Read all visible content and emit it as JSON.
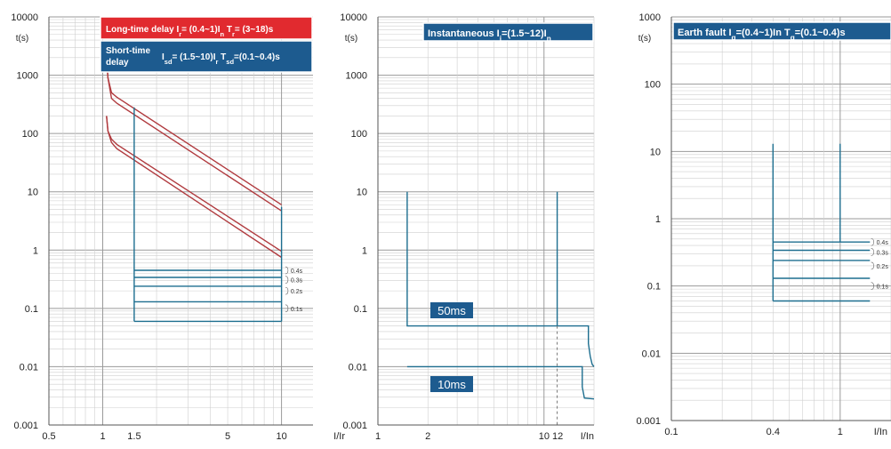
{
  "chart_data": [
    {
      "type": "line",
      "ylabel": "t(s)",
      "xlabel": "I/Ir",
      "xscale": "log",
      "yscale": "log",
      "xlim": [
        0.5,
        15
      ],
      "ylim": [
        0.001,
        10000
      ],
      "xticks": [
        "0.5",
        "1",
        "1.5",
        "5",
        "10"
      ],
      "yticks": [
        "10000",
        "1000",
        "100",
        "10",
        "1",
        "0.1",
        "0.01",
        "0.001"
      ],
      "grid": true,
      "boxes": [
        {
          "title": "Long-time delay  Ir= (0.4~1)In  Tr= (3~18)s",
          "color": "#e12a2f"
        },
        {
          "title_line1": "Short-time",
          "title_line2": "delay",
          "formula": "Isd= (1.5~10)Ir  Tsd=(0.1~0.4)s",
          "color": "#1d5b8f"
        }
      ],
      "series": [
        {
          "color": "#b03a3e",
          "x": [
            1.05,
            1.07,
            1.12,
            1.2,
            10
          ],
          "y": [
            2000,
            900,
            500,
            420,
            6.0
          ]
        },
        {
          "color": "#b03a3e",
          "x": [
            1.05,
            1.07,
            1.12,
            1.2,
            10
          ],
          "y": [
            2000,
            900,
            400,
            330,
            4.7
          ]
        },
        {
          "color": "#b03a3e",
          "x": [
            1.05,
            1.07,
            1.12,
            1.2,
            10
          ],
          "y": [
            200,
            110,
            80,
            65,
            0.95
          ]
        },
        {
          "color": "#b03a3e",
          "x": [
            1.05,
            1.07,
            1.12,
            1.2,
            10
          ],
          "y": [
            200,
            110,
            70,
            55,
            0.75
          ]
        },
        {
          "color": "#1d6e8f",
          "x": [
            1.5,
            1.5
          ],
          "y": [
            280,
            0.06
          ]
        },
        {
          "color": "#1d6e8f",
          "x": [
            10,
            10
          ],
          "y": [
            5.5,
            0.06
          ]
        },
        {
          "color": "#1d6e8f",
          "x": [
            1.5,
            10
          ],
          "y": [
            0.45,
            0.45
          ]
        },
        {
          "color": "#1d6e8f",
          "x": [
            1.5,
            10
          ],
          "y": [
            0.34,
            0.34
          ]
        },
        {
          "color": "#1d6e8f",
          "x": [
            1.5,
            10
          ],
          "y": [
            0.24,
            0.24
          ]
        },
        {
          "color": "#1d6e8f",
          "x": [
            1.5,
            10
          ],
          "y": [
            0.13,
            0.13
          ]
        },
        {
          "color": "#1d6e8f",
          "x": [
            1.5,
            10
          ],
          "y": [
            0.06,
            0.06
          ]
        }
      ],
      "annotations": [
        {
          "text": "0.4s",
          "x": 11,
          "y": 0.45
        },
        {
          "text": "0.3s",
          "x": 11,
          "y": 0.31
        },
        {
          "text": "0.2s",
          "x": 11,
          "y": 0.2
        },
        {
          "text": "0.1s",
          "x": 11,
          "y": 0.1
        }
      ]
    },
    {
      "type": "line",
      "ylabel": "t(s)",
      "xlabel": "I/In",
      "xscale": "log",
      "yscale": "log",
      "xlim": [
        1,
        20
      ],
      "ylim": [
        0.001,
        10000
      ],
      "xticks": [
        "1",
        "2",
        "10 12"
      ],
      "yticks": [
        "10000",
        "1000",
        "100",
        "10",
        "1",
        "0.1",
        "0.01",
        "0.001"
      ],
      "grid": true,
      "boxes": [
        {
          "title": "Instantaneous Ii=(1.5~12)In",
          "color": "#1d5b8f"
        },
        {
          "title": "50ms",
          "color": "#1d5b8f"
        },
        {
          "title": "10ms",
          "color": "#1d5b8f"
        }
      ],
      "series": [
        {
          "color": "#1d6e8f",
          "x": [
            1.5,
            1.5,
            18.5,
            18.5,
            19,
            19.5,
            20
          ],
          "y": [
            10,
            0.05,
            0.05,
            0.025,
            0.015,
            0.011,
            0.01
          ]
        },
        {
          "color": "#1d6e8f",
          "x": [
            12,
            12
          ],
          "y": [
            10,
            0.05
          ]
        },
        {
          "color": "#1d6e8f",
          "x": [
            1.5,
            17,
            17,
            17.5,
            20
          ],
          "y": [
            0.01,
            0.01,
            0.0045,
            0.0029,
            0.0028
          ]
        }
      ]
    },
    {
      "type": "line",
      "ylabel": "t(s)",
      "xlabel": "I/In",
      "xscale": "log",
      "yscale": "log",
      "xlim": [
        0.1,
        2
      ],
      "ylim": [
        0.001,
        1000
      ],
      "xticks": [
        "0.1",
        "0.4",
        "1"
      ],
      "yticks": [
        "1000",
        "100",
        "10",
        "1",
        "0.1",
        "0.01",
        "0.001"
      ],
      "grid": true,
      "boxes": [
        {
          "title": "Earth fault Ig=(0.4~1)In Tg=(0.1~0.4)s",
          "color": "#1d5b8f"
        }
      ],
      "series": [
        {
          "color": "#1d6e8f",
          "x": [
            0.4,
            0.4
          ],
          "y": [
            13,
            0.06
          ]
        },
        {
          "color": "#1d6e8f",
          "x": [
            1,
            1
          ],
          "y": [
            13,
            0.45
          ]
        },
        {
          "color": "#1d6e8f",
          "x": [
            0.4,
            1.5
          ],
          "y": [
            0.45,
            0.45
          ]
        },
        {
          "color": "#1d6e8f",
          "x": [
            0.4,
            1.5
          ],
          "y": [
            0.34,
            0.34
          ]
        },
        {
          "color": "#1d6e8f",
          "x": [
            0.4,
            1.5
          ],
          "y": [
            0.24,
            0.24
          ]
        },
        {
          "color": "#1d6e8f",
          "x": [
            0.4,
            1.5
          ],
          "y": [
            0.13,
            0.13
          ]
        },
        {
          "color": "#1d6e8f",
          "x": [
            0.4,
            1.5
          ],
          "y": [
            0.06,
            0.06
          ]
        }
      ],
      "annotations": [
        {
          "text": "0.4s",
          "x": 1.6,
          "y": 0.45
        },
        {
          "text": "0.3s",
          "x": 1.6,
          "y": 0.32
        },
        {
          "text": "0.2s",
          "x": 1.6,
          "y": 0.2
        },
        {
          "text": "0.1s",
          "x": 1.6,
          "y": 0.1
        }
      ]
    }
  ]
}
